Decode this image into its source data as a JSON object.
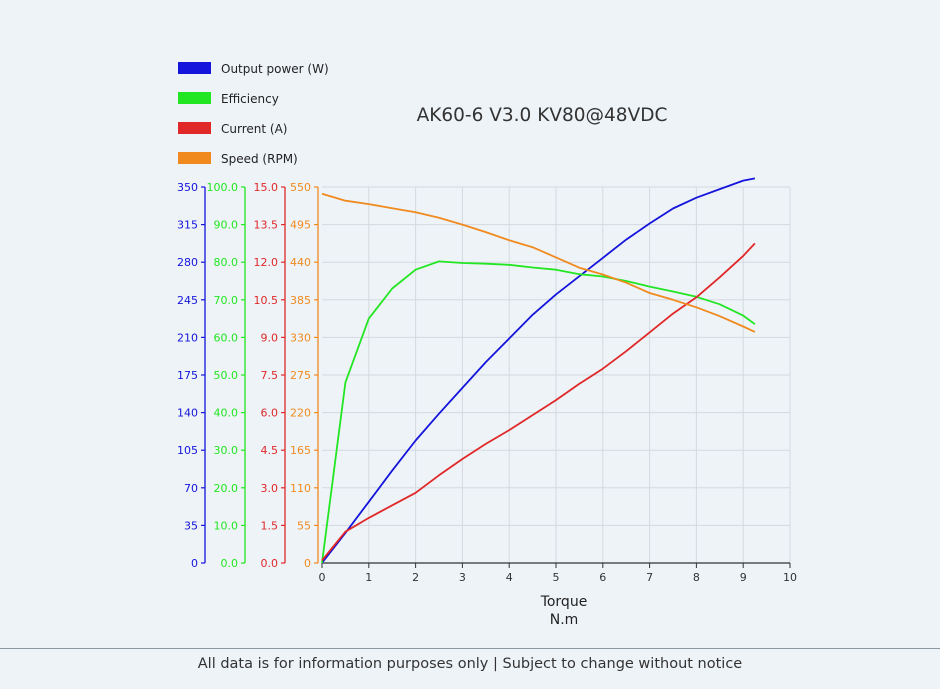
{
  "chart_data": {
    "type": "line",
    "title": "AK60-6 V3.0 KV80@48VDC",
    "xlabel": "Torque",
    "xunit": "N.m",
    "xlim": [
      0,
      10
    ],
    "xticks": [
      "0",
      "1",
      "2",
      "3",
      "4",
      "5",
      "6",
      "7",
      "8",
      "9",
      "10"
    ],
    "grid": true,
    "legend_position": "top-left",
    "series": [
      {
        "name": "Output power (W)",
        "color": "#1414dc",
        "axis": {
          "ylim": [
            0,
            350
          ],
          "ticks": [
            "0",
            "35",
            "70",
            "105",
            "140",
            "175",
            "210",
            "245",
            "280",
            "315",
            "350"
          ]
        },
        "x": [
          0,
          0.5,
          1,
          1.5,
          2,
          2.5,
          3,
          3.5,
          4,
          4.5,
          5,
          5.5,
          6,
          6.5,
          7,
          7.5,
          8,
          8.5,
          9,
          9.25
        ],
        "y": [
          0,
          28,
          57,
          86,
          114,
          139,
          163,
          187,
          209,
          231,
          250,
          267,
          284,
          301,
          316,
          330,
          340,
          348,
          356,
          358
        ]
      },
      {
        "name": "Efficiency",
        "color": "#22e622",
        "axis": {
          "ylim": [
            0,
            100
          ],
          "ticks": [
            "0.0",
            "10.0",
            "20.0",
            "30.0",
            "40.0",
            "50.0",
            "60.0",
            "70.0",
            "80.0",
            "90.0",
            "100.0"
          ]
        },
        "x": [
          0,
          0.5,
          1,
          1.5,
          2,
          2.5,
          3,
          3.5,
          4,
          4.5,
          5,
          5.5,
          6,
          6.5,
          7,
          7.5,
          8,
          8.5,
          9,
          9.25
        ],
        "y": [
          0,
          48,
          65,
          73,
          78,
          80.2,
          79.8,
          79.6,
          79.3,
          78.6,
          78,
          76.8,
          76.2,
          75,
          73.5,
          72.2,
          70.8,
          68.8,
          65.8,
          63.5
        ]
      },
      {
        "name": "Current (A)",
        "color": "#e02828",
        "axis": {
          "ylim": [
            0,
            15
          ],
          "ticks": [
            "0.0",
            "1.5",
            "3.0",
            "4.5",
            "6.0",
            "7.5",
            "9.0",
            "10.5",
            "12.0",
            "13.5",
            "15.0"
          ]
        },
        "x": [
          0,
          0.5,
          1,
          1.5,
          2,
          2.5,
          3,
          3.5,
          4,
          4.5,
          5,
          5.5,
          6,
          6.5,
          7,
          7.5,
          8,
          8.5,
          9,
          9.25
        ],
        "y": [
          0.1,
          1.25,
          1.8,
          2.3,
          2.8,
          3.5,
          4.15,
          4.75,
          5.3,
          5.9,
          6.5,
          7.15,
          7.75,
          8.45,
          9.2,
          9.95,
          10.6,
          11.4,
          12.25,
          12.75
        ]
      },
      {
        "name": "Speed (RPM)",
        "color": "#f08a1e",
        "axis": {
          "ylim": [
            0,
            550
          ],
          "ticks": [
            "0",
            "55",
            "110",
            "165",
            "220",
            "275",
            "330",
            "385",
            "440",
            "495",
            "550"
          ]
        },
        "x": [
          0,
          0.5,
          1,
          1.5,
          2,
          2.5,
          3,
          3.5,
          4,
          4.5,
          5,
          5.5,
          6,
          6.5,
          7,
          7.5,
          8,
          8.5,
          9,
          9.25
        ],
        "y": [
          540,
          530,
          525,
          519,
          513,
          505,
          495,
          484,
          472,
          462,
          447,
          432,
          422,
          410,
          395,
          385,
          374,
          361,
          346,
          338
        ]
      }
    ]
  },
  "footer": {
    "notice": "All data is for information purposes only | Subject to change without notice"
  }
}
